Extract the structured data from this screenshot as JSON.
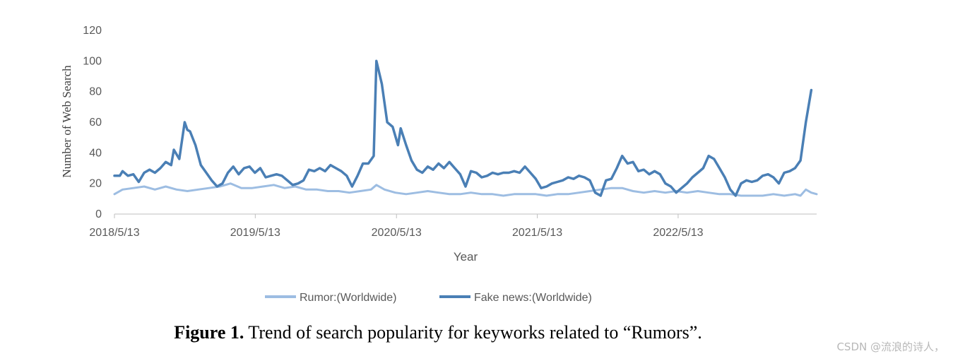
{
  "chart_data": {
    "type": "line",
    "xlabel": "Year",
    "ylabel": "Number  of Web Search",
    "ylim": [
      0,
      120
    ],
    "yticks": [
      0,
      20,
      40,
      60,
      80,
      100,
      120
    ],
    "xticks": [
      "2018/5/13",
      "2019/5/13",
      "2020/5/13",
      "2021/5/13",
      "2022/5/13"
    ],
    "xrange": [
      "2018/5/13",
      "2023/5/7"
    ],
    "grid": false,
    "legend_position": "bottom",
    "series": [
      {
        "name": "Rumor:(Worldwide)",
        "color": "#9dbde2",
        "points": [
          [
            "2018/5/13",
            13
          ],
          [
            "2018/6/3",
            16
          ],
          [
            "2018/7/1",
            17
          ],
          [
            "2018/7/29",
            18
          ],
          [
            "2018/8/26",
            16
          ],
          [
            "2018/9/23",
            18
          ],
          [
            "2018/10/21",
            16
          ],
          [
            "2018/11/18",
            15
          ],
          [
            "2018/12/16",
            16
          ],
          [
            "2019/1/13",
            17
          ],
          [
            "2019/2/10",
            18
          ],
          [
            "2019/3/10",
            20
          ],
          [
            "2019/4/7",
            17
          ],
          [
            "2019/5/5",
            17
          ],
          [
            "2019/6/2",
            18
          ],
          [
            "2019/6/30",
            19
          ],
          [
            "2019/7/28",
            17
          ],
          [
            "2019/8/25",
            18
          ],
          [
            "2019/9/22",
            16
          ],
          [
            "2019/10/20",
            16
          ],
          [
            "2019/11/17",
            15
          ],
          [
            "2019/12/15",
            15
          ],
          [
            "2020/1/12",
            14
          ],
          [
            "2020/2/9",
            15
          ],
          [
            "2020/3/8",
            16
          ],
          [
            "2020/3/22",
            19
          ],
          [
            "2020/4/12",
            16
          ],
          [
            "2020/5/10",
            14
          ],
          [
            "2020/6/7",
            13
          ],
          [
            "2020/7/5",
            14
          ],
          [
            "2020/8/2",
            15
          ],
          [
            "2020/8/30",
            14
          ],
          [
            "2020/9/27",
            13
          ],
          [
            "2020/10/25",
            13
          ],
          [
            "2020/11/22",
            14
          ],
          [
            "2020/12/20",
            13
          ],
          [
            "2021/1/17",
            13
          ],
          [
            "2021/2/14",
            12
          ],
          [
            "2021/3/14",
            13
          ],
          [
            "2021/4/11",
            13
          ],
          [
            "2021/5/9",
            13
          ],
          [
            "2021/6/6",
            12
          ],
          [
            "2021/7/4",
            13
          ],
          [
            "2021/8/1",
            13
          ],
          [
            "2021/8/29",
            14
          ],
          [
            "2021/9/26",
            15
          ],
          [
            "2021/10/24",
            16
          ],
          [
            "2021/11/21",
            17
          ],
          [
            "2021/12/19",
            17
          ],
          [
            "2022/1/16",
            15
          ],
          [
            "2022/2/13",
            14
          ],
          [
            "2022/3/13",
            15
          ],
          [
            "2022/4/10",
            14
          ],
          [
            "2022/5/8",
            15
          ],
          [
            "2022/6/5",
            14
          ],
          [
            "2022/7/3",
            15
          ],
          [
            "2022/7/31",
            14
          ],
          [
            "2022/8/28",
            13
          ],
          [
            "2022/9/25",
            13
          ],
          [
            "2022/10/23",
            12
          ],
          [
            "2022/11/20",
            12
          ],
          [
            "2022/12/18",
            12
          ],
          [
            "2023/1/15",
            13
          ],
          [
            "2023/2/12",
            12
          ],
          [
            "2023/3/12",
            13
          ],
          [
            "2023/3/26",
            12
          ],
          [
            "2023/4/9",
            16
          ],
          [
            "2023/4/23",
            14
          ],
          [
            "2023/5/7",
            13
          ]
        ]
      },
      {
        "name": "Fake news:(Worldwide)",
        "color": "#4a7fb5",
        "points": [
          [
            "2018/5/13",
            25
          ],
          [
            "2018/5/27",
            25
          ],
          [
            "2018/6/3",
            28
          ],
          [
            "2018/6/17",
            25
          ],
          [
            "2018/7/1",
            26
          ],
          [
            "2018/7/15",
            21
          ],
          [
            "2018/7/29",
            27
          ],
          [
            "2018/8/12",
            29
          ],
          [
            "2018/8/26",
            27
          ],
          [
            "2018/9/9",
            30
          ],
          [
            "2018/9/23",
            34
          ],
          [
            "2018/10/7",
            32
          ],
          [
            "2018/10/14",
            42
          ],
          [
            "2018/10/28",
            36
          ],
          [
            "2018/11/11",
            60
          ],
          [
            "2018/11/18",
            55
          ],
          [
            "2018/11/25",
            54
          ],
          [
            "2018/12/9",
            45
          ],
          [
            "2018/12/23",
            32
          ],
          [
            "2019/1/6",
            27
          ],
          [
            "2019/1/20",
            22
          ],
          [
            "2019/2/3",
            18
          ],
          [
            "2019/2/17",
            20
          ],
          [
            "2019/3/3",
            27
          ],
          [
            "2019/3/17",
            31
          ],
          [
            "2019/3/31",
            26
          ],
          [
            "2019/4/14",
            30
          ],
          [
            "2019/4/28",
            31
          ],
          [
            "2019/5/12",
            27
          ],
          [
            "2019/5/26",
            30
          ],
          [
            "2019/6/9",
            24
          ],
          [
            "2019/6/23",
            25
          ],
          [
            "2019/7/7",
            26
          ],
          [
            "2019/7/21",
            25
          ],
          [
            "2019/8/4",
            22
          ],
          [
            "2019/8/18",
            19
          ],
          [
            "2019/9/1",
            20
          ],
          [
            "2019/9/15",
            22
          ],
          [
            "2019/9/29",
            29
          ],
          [
            "2019/10/13",
            28
          ],
          [
            "2019/10/27",
            30
          ],
          [
            "2019/11/10",
            28
          ],
          [
            "2019/11/24",
            32
          ],
          [
            "2019/12/8",
            30
          ],
          [
            "2019/12/22",
            28
          ],
          [
            "2020/1/5",
            25
          ],
          [
            "2020/1/19",
            18
          ],
          [
            "2020/2/2",
            25
          ],
          [
            "2020/2/16",
            33
          ],
          [
            "2020/3/1",
            33
          ],
          [
            "2020/3/15",
            38
          ],
          [
            "2020/3/22",
            100
          ],
          [
            "2020/4/5",
            85
          ],
          [
            "2020/4/19",
            60
          ],
          [
            "2020/5/3",
            57
          ],
          [
            "2020/5/17",
            45
          ],
          [
            "2020/5/24",
            56
          ],
          [
            "2020/6/7",
            45
          ],
          [
            "2020/6/21",
            35
          ],
          [
            "2020/7/5",
            29
          ],
          [
            "2020/7/19",
            27
          ],
          [
            "2020/8/2",
            31
          ],
          [
            "2020/8/16",
            29
          ],
          [
            "2020/8/30",
            33
          ],
          [
            "2020/9/13",
            30
          ],
          [
            "2020/9/27",
            34
          ],
          [
            "2020/10/11",
            30
          ],
          [
            "2020/10/25",
            26
          ],
          [
            "2020/11/8",
            18
          ],
          [
            "2020/11/22",
            28
          ],
          [
            "2020/12/6",
            27
          ],
          [
            "2020/12/20",
            24
          ],
          [
            "2021/1/3",
            25
          ],
          [
            "2021/1/17",
            27
          ],
          [
            "2021/1/31",
            26
          ],
          [
            "2021/2/14",
            27
          ],
          [
            "2021/2/28",
            27
          ],
          [
            "2021/3/14",
            28
          ],
          [
            "2021/3/28",
            27
          ],
          [
            "2021/4/11",
            31
          ],
          [
            "2021/4/25",
            27
          ],
          [
            "2021/5/9",
            23
          ],
          [
            "2021/5/23",
            17
          ],
          [
            "2021/6/6",
            18
          ],
          [
            "2021/6/20",
            20
          ],
          [
            "2021/7/4",
            21
          ],
          [
            "2021/7/18",
            22
          ],
          [
            "2021/8/1",
            24
          ],
          [
            "2021/8/15",
            23
          ],
          [
            "2021/8/29",
            25
          ],
          [
            "2021/9/12",
            24
          ],
          [
            "2021/9/26",
            22
          ],
          [
            "2021/10/10",
            14
          ],
          [
            "2021/10/24",
            12
          ],
          [
            "2021/11/7",
            22
          ],
          [
            "2021/11/21",
            23
          ],
          [
            "2021/12/5",
            30
          ],
          [
            "2021/12/19",
            38
          ],
          [
            "2022/1/2",
            33
          ],
          [
            "2022/1/16",
            34
          ],
          [
            "2022/1/30",
            28
          ],
          [
            "2022/2/13",
            29
          ],
          [
            "2022/2/27",
            26
          ],
          [
            "2022/3/13",
            28
          ],
          [
            "2022/3/27",
            26
          ],
          [
            "2022/4/10",
            20
          ],
          [
            "2022/4/24",
            18
          ],
          [
            "2022/5/8",
            14
          ],
          [
            "2022/5/22",
            17
          ],
          [
            "2022/6/5",
            20
          ],
          [
            "2022/6/19",
            24
          ],
          [
            "2022/7/3",
            27
          ],
          [
            "2022/7/17",
            30
          ],
          [
            "2022/7/31",
            38
          ],
          [
            "2022/8/14",
            36
          ],
          [
            "2022/8/28",
            30
          ],
          [
            "2022/9/11",
            24
          ],
          [
            "2022/9/25",
            16
          ],
          [
            "2022/10/9",
            12
          ],
          [
            "2022/10/23",
            20
          ],
          [
            "2022/11/6",
            22
          ],
          [
            "2022/11/20",
            21
          ],
          [
            "2022/12/4",
            22
          ],
          [
            "2022/12/18",
            25
          ],
          [
            "2023/1/1",
            26
          ],
          [
            "2023/1/15",
            24
          ],
          [
            "2023/1/29",
            20
          ],
          [
            "2023/2/12",
            27
          ],
          [
            "2023/2/26",
            28
          ],
          [
            "2023/3/12",
            30
          ],
          [
            "2023/3/26",
            35
          ],
          [
            "2023/4/9",
            60
          ],
          [
            "2023/4/23",
            81
          ]
        ]
      }
    ]
  },
  "caption": {
    "label": "Figure 1.",
    "text": " Trend of search popularity for keyworks related to “Rumors”."
  },
  "watermark": "CSDN @流浪的诗人，"
}
